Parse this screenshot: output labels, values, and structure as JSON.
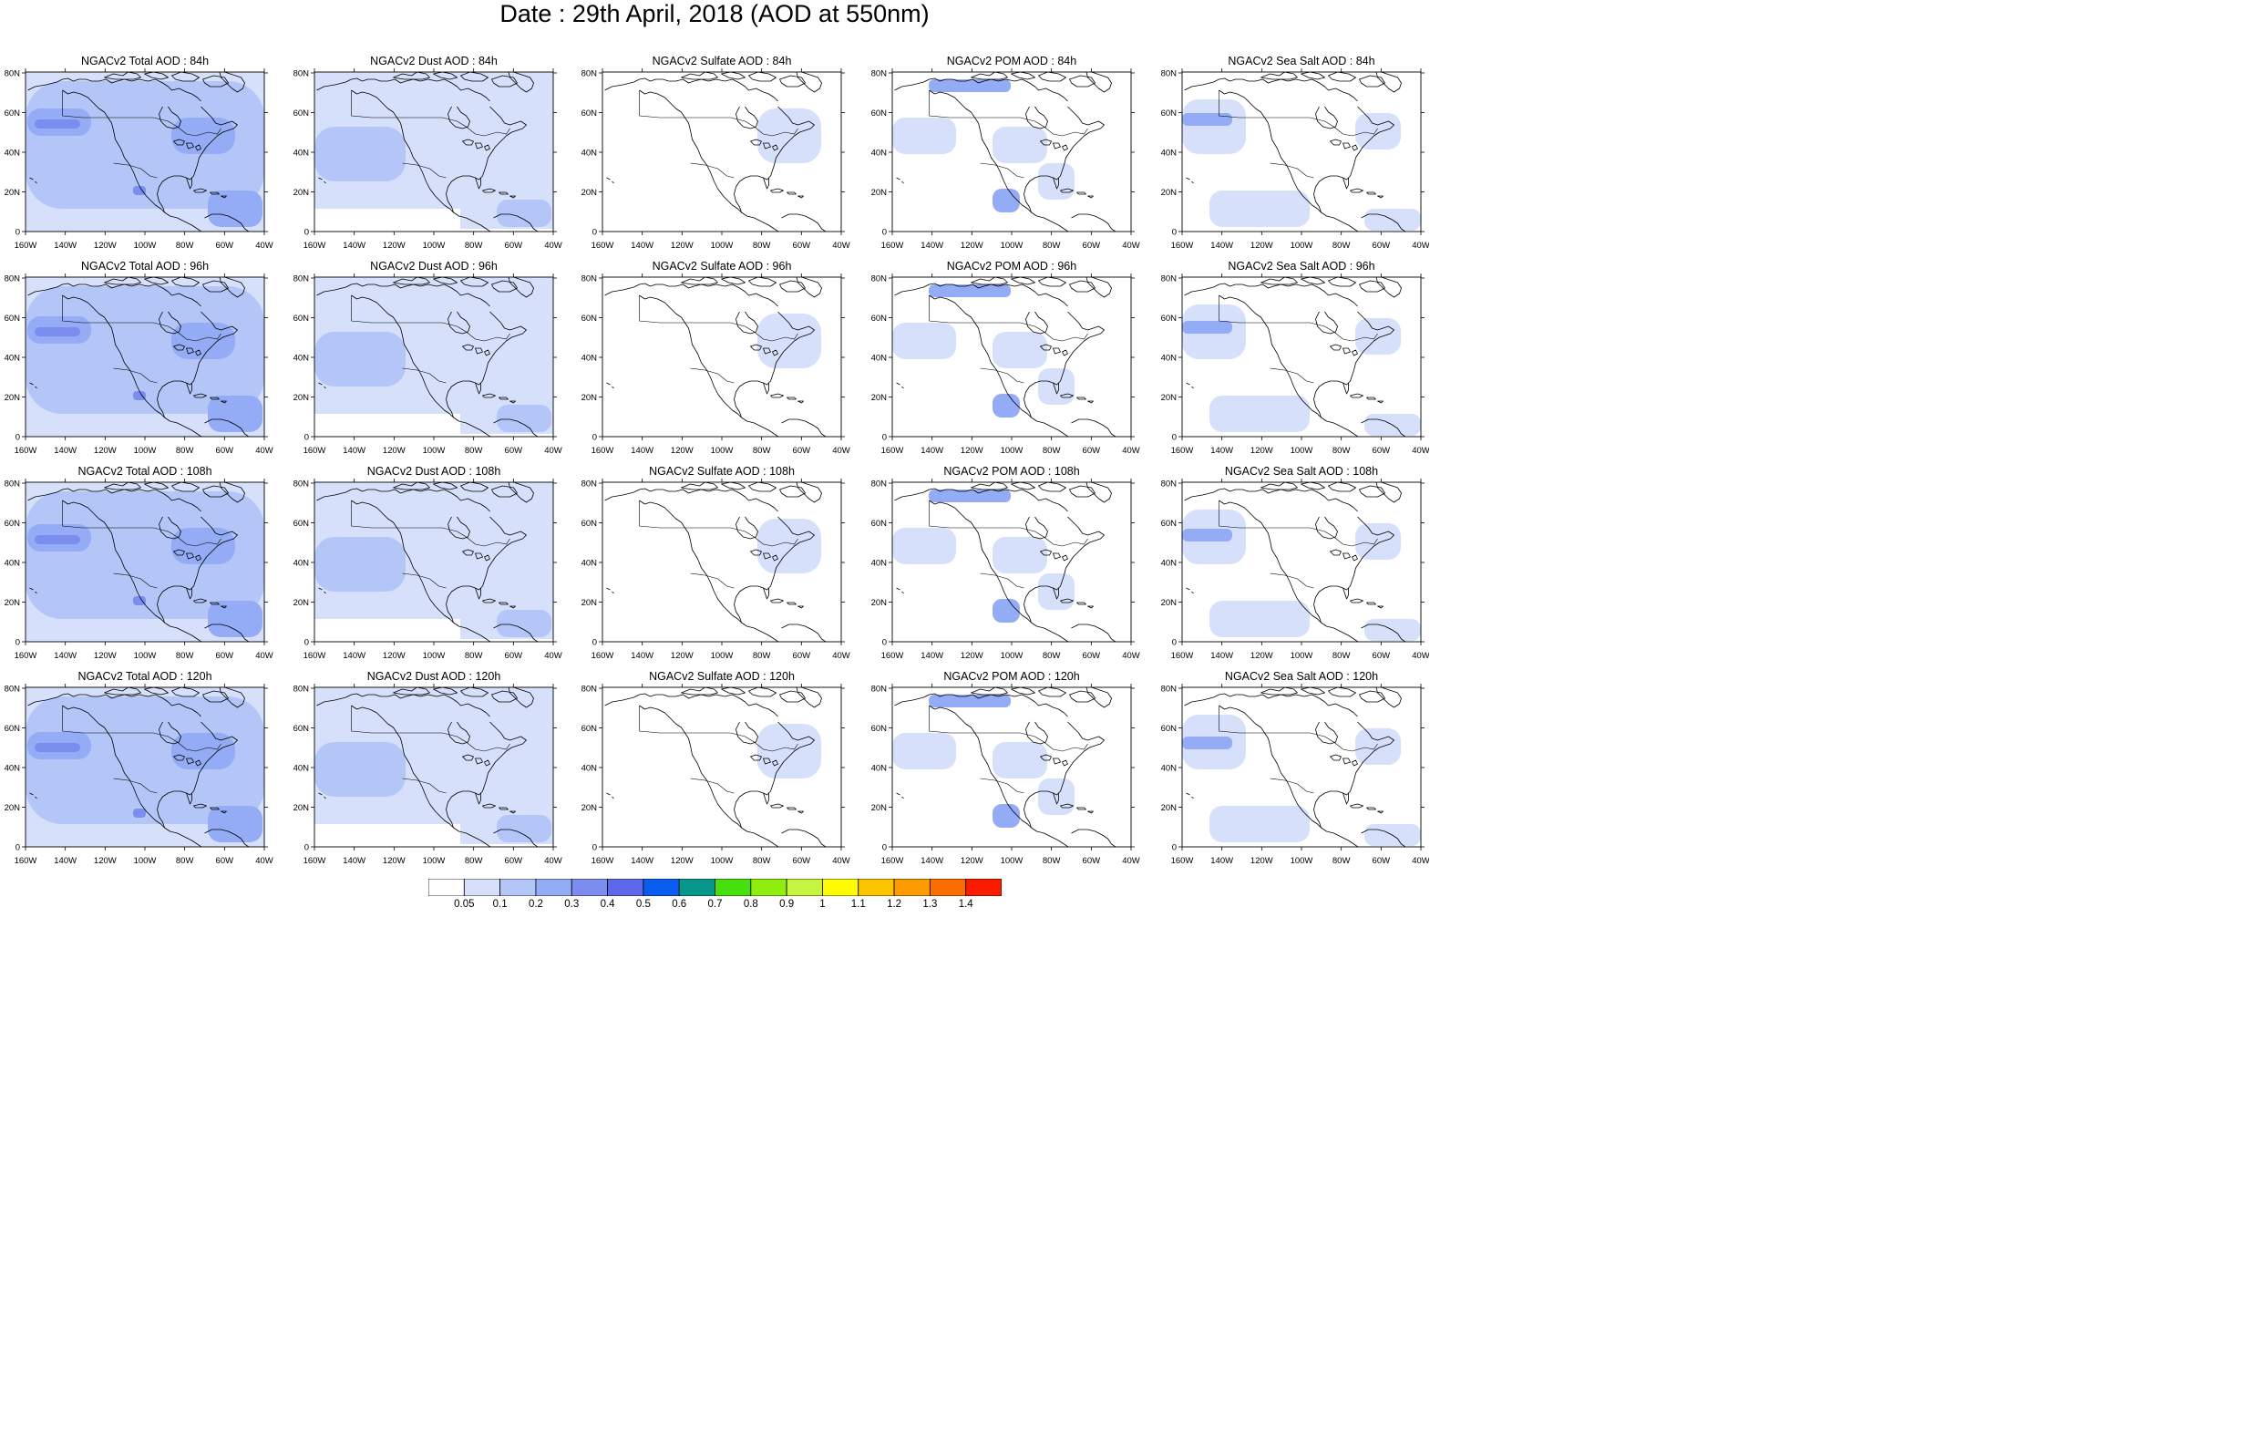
{
  "title": "Date : 29th April, 2018 (AOD at 550nm)",
  "y_ticks": [
    "80N",
    "60N",
    "40N",
    "20N",
    "0"
  ],
  "x_ticks": [
    "160W",
    "140W",
    "120W",
    "100W",
    "80W",
    "60W",
    "40W"
  ],
  "forecast_hours": [
    "84h",
    "96h",
    "108h",
    "120h"
  ],
  "species": [
    {
      "key": "total",
      "label": "NGACv2 Total AOD"
    },
    {
      "key": "dust",
      "label": "NGACv2 Dust AOD"
    },
    {
      "key": "sulfate",
      "label": "NGACv2 Sulfate AOD"
    },
    {
      "key": "pom",
      "label": "NGACv2 POM AOD"
    },
    {
      "key": "seasalt",
      "label": "NGACv2 Sea Salt AOD"
    }
  ],
  "panel_titles": [
    [
      "NGACv2 Total AOD : 84h",
      "NGACv2 Dust AOD : 84h",
      "NGACv2 Sulfate AOD : 84h",
      "NGACv2 POM AOD : 84h",
      "NGACv2 Sea Salt AOD : 84h"
    ],
    [
      "NGACv2 Total AOD : 96h",
      "NGACv2 Dust AOD : 96h",
      "NGACv2 Sulfate AOD : 96h",
      "NGACv2 POM AOD : 96h",
      "NGACv2 Sea Salt AOD : 96h"
    ],
    [
      "NGACv2 Total AOD : 108h",
      "NGACv2 Dust AOD : 108h",
      "NGACv2 Sulfate AOD : 108h",
      "NGACv2 POM AOD : 108h",
      "NGACv2 Sea Salt AOD : 108h"
    ],
    [
      "NGACv2 Total AOD : 120h",
      "NGACv2 Dust AOD : 120h",
      "NGACv2 Sulfate AOD : 120h",
      "NGACv2 POM AOD : 120h",
      "NGACv2 Sea Salt  AOD : 120h"
    ]
  ],
  "colorbar": {
    "labels": [
      "0.05",
      "0.1",
      "0.2",
      "0.3",
      "0.4",
      "0.5",
      "0.6",
      "0.7",
      "0.8",
      "0.9",
      "1",
      "1.1",
      "1.2",
      "1.3",
      "1.4"
    ],
    "colors": [
      "#ffffff",
      "#d6e0fb",
      "#b4c6f8",
      "#94acf5",
      "#7b8ef0",
      "#5d68ea",
      "#0a5df0",
      "#07968c",
      "#46e10c",
      "#8fee0e",
      "#c6f53f",
      "#fffb00",
      "#fdc400",
      "#fc9a00",
      "#fc6d00",
      "#fb1c00"
    ]
  },
  "colors": {
    "coast": "#000000",
    "land_fill": "#ffffff"
  }
}
